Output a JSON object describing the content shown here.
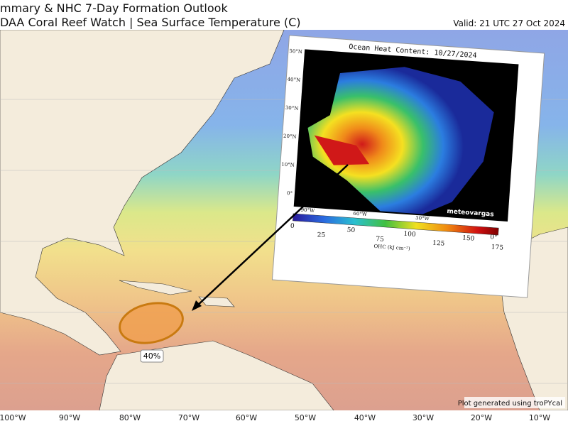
{
  "header": {
    "title_line1": "mmary & NHC 7-Day Formation Outlook",
    "title_line2": "DAA Coral Reef Watch | Sea Surface Temperature (C)",
    "valid": "Valid: 21 UTC 27 Oct 2024"
  },
  "map": {
    "lon_labels": [
      "100°W",
      "90°W",
      "80°W",
      "70°W",
      "60°W",
      "50°W",
      "40°W",
      "30°W",
      "20°W",
      "10°W"
    ]
  },
  "outlook": {
    "probability": "40%"
  },
  "footer": {
    "credit": "Plot generated using troPYcal"
  },
  "inset": {
    "title": "Ocean Heat Content: 10/27/2024",
    "lat_labels": [
      "50°N",
      "40°N",
      "30°N",
      "20°N",
      "10°N",
      "0°"
    ],
    "lon_labels": [
      "90°W",
      "60°W",
      "30°W",
      "0°"
    ],
    "colorbar": {
      "ticks": [
        0,
        25,
        50,
        75,
        100,
        125,
        150,
        175
      ],
      "label": "OHC (kJ cm⁻²)"
    },
    "watermark": "meteovargas"
  }
}
